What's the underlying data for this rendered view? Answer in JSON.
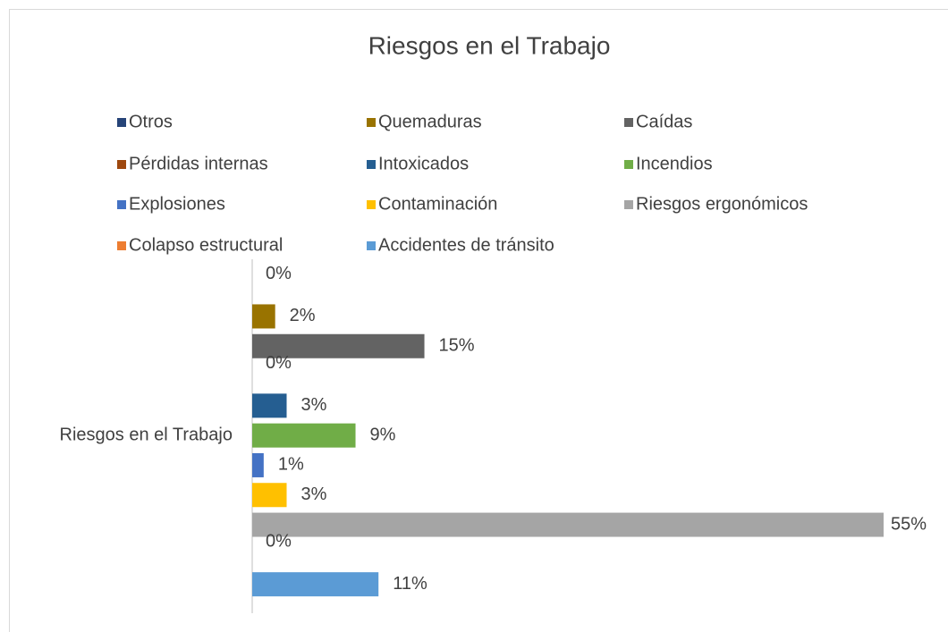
{
  "chart_data": {
    "type": "hbar",
    "title": "Riesgos en el Trabajo",
    "categories": [
      "Riesgos en el Trabajo"
    ],
    "legend": "top",
    "series": [
      {
        "name": "Otros",
        "color": "#264478",
        "values": [
          0
        ],
        "value_labels": [
          "0%"
        ]
      },
      {
        "name": "Quemaduras",
        "color": "#997300",
        "values": [
          2
        ],
        "value_labels": [
          "2%"
        ]
      },
      {
        "name": "Caídas",
        "color": "#636363",
        "values": [
          15
        ],
        "value_labels": [
          "15%"
        ]
      },
      {
        "name": "Pérdidas internas",
        "color": "#9e480e",
        "values": [
          0
        ],
        "value_labels": [
          "0%"
        ]
      },
      {
        "name": "Intoxicados",
        "color": "#255e91",
        "values": [
          3
        ],
        "value_labels": [
          "3%"
        ]
      },
      {
        "name": "Incendios",
        "color": "#70ad47",
        "values": [
          9
        ],
        "value_labels": [
          "9%"
        ]
      },
      {
        "name": "Explosiones",
        "color": "#4472c4",
        "values": [
          1
        ],
        "value_labels": [
          "1%"
        ]
      },
      {
        "name": "Contaminación",
        "color": "#ffc000",
        "values": [
          3
        ],
        "value_labels": [
          "3%"
        ]
      },
      {
        "name": "Riesgos ergonómicos",
        "color": "#a5a5a5",
        "values": [
          55
        ],
        "value_labels": [
          "55%"
        ]
      },
      {
        "name": "Colapso estructural",
        "color": "#ed7d31",
        "values": [
          0
        ],
        "value_labels": [
          "0%"
        ]
      },
      {
        "name": "Accidentes de tránsito",
        "color": "#5b9bd5",
        "values": [
          11
        ],
        "value_labels": [
          "11%"
        ]
      }
    ]
  }
}
